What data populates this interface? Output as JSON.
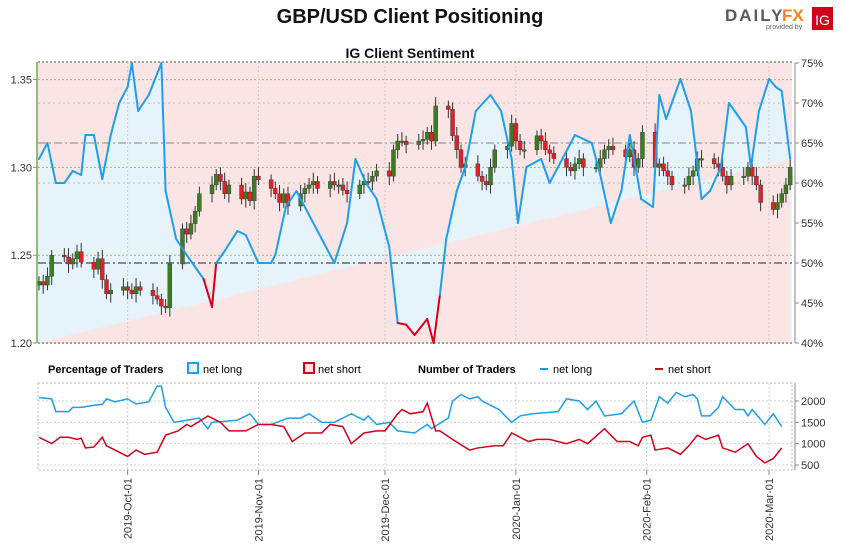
{
  "header": {
    "title": "GBP/USD Client Positioning",
    "logo": {
      "part1": "DAILY",
      "part2": "FX",
      "provided": "provided by",
      "badge": "IG"
    }
  },
  "colors": {
    "long": "#1E9FE6",
    "short": "#D0021B",
    "candle_up": "#3A7D22",
    "candle_down": "#E0202A",
    "long_fill": "#E6F3FB",
    "short_fill": "#FBE4E4",
    "logo_grey": "#555a63",
    "logo_orange": "#F58220"
  },
  "chart_data": [
    {
      "type": "candlestick+line",
      "title": "IG Client Sentiment",
      "x_start": "2019-09-10",
      "x_ticks": [
        "2019-Oct-01",
        "2019-Nov-01",
        "2019-Dec-01",
        "2020-Jan-01",
        "2020-Feb-01",
        "2020-Mar-01"
      ],
      "left_axis": {
        "label": "GBP/USD",
        "ticks": [
          "1.35",
          "1.30",
          "1.25",
          "1.20"
        ],
        "ylim": [
          1.2,
          1.36
        ]
      },
      "right_axis": {
        "ticks": [
          "75%",
          "70%",
          "65%",
          "60%",
          "55%",
          "50%",
          "45%",
          "40%"
        ],
        "ylim": [
          40,
          75
        ]
      },
      "price_closes": [
        1.235,
        1.233,
        1.238,
        1.25,
        1.249,
        1.245,
        1.248,
        1.252,
        1.246,
        1.242,
        1.248,
        1.236,
        1.228,
        1.23,
        1.232,
        1.23,
        1.228,
        1.232,
        1.23,
        1.227,
        1.225,
        1.221,
        1.22,
        1.245,
        1.265,
        1.262,
        1.268,
        1.275,
        1.285,
        1.29,
        1.296,
        1.292,
        1.285,
        1.29,
        1.282,
        1.286,
        1.281,
        1.295,
        1.293,
        1.288,
        1.285,
        1.28,
        1.285,
        1.278,
        1.285,
        1.288,
        1.29,
        1.292,
        1.288,
        1.292,
        1.29,
        1.29,
        1.287,
        1.285,
        1.29,
        1.292,
        1.292,
        1.295,
        1.298,
        1.295,
        1.31,
        1.315,
        1.315,
        1.313,
        1.315,
        1.316,
        1.32,
        1.315,
        1.335,
        1.333,
        1.318,
        1.31,
        1.3,
        1.302,
        1.295,
        1.292,
        1.29,
        1.3,
        1.31,
        1.312,
        1.325,
        1.315,
        1.31,
        1.31,
        1.318,
        1.315,
        1.31,
        1.308,
        1.305,
        1.3,
        1.298,
        1.302,
        1.305,
        1.3,
        1.3,
        1.305,
        1.31,
        1.312,
        1.31,
        1.306,
        1.31,
        1.3,
        1.305,
        1.32,
        1.3,
        1.302,
        1.298,
        1.295,
        1.29,
        1.29,
        1.295,
        1.298,
        1.305,
        1.305,
        1.302,
        1.3,
        1.295,
        1.29,
        1.295,
        1.295,
        1.3,
        1.295,
        1.29,
        1.28,
        1.276,
        1.28,
        1.285,
        1.29,
        1.3
      ],
      "net_long_pct": [
        [
          0,
          63
        ],
        [
          2,
          65
        ],
        [
          4,
          60
        ],
        [
          6,
          60
        ],
        [
          8,
          61.5
        ],
        [
          10,
          61
        ],
        [
          11,
          66
        ],
        [
          13,
          66
        ],
        [
          15,
          60.5
        ],
        [
          17,
          66
        ],
        [
          19,
          70
        ],
        [
          21,
          72
        ],
        [
          22,
          75
        ],
        [
          23.5,
          69
        ],
        [
          26,
          71
        ],
        [
          29,
          75
        ],
        [
          30,
          59
        ],
        [
          32.5,
          53
        ],
        [
          35,
          51
        ],
        [
          39,
          48
        ],
        [
          41,
          44.5
        ],
        [
          42,
          50
        ],
        [
          44,
          51.5
        ],
        [
          47,
          54
        ],
        [
          49,
          53.5
        ],
        [
          52,
          50
        ],
        [
          55,
          50
        ],
        [
          56,
          51
        ],
        [
          58.5,
          57
        ],
        [
          61,
          59
        ],
        [
          63,
          57
        ],
        [
          66,
          54
        ],
        [
          70,
          50
        ],
        [
          73,
          55
        ],
        [
          75,
          63
        ],
        [
          77.5,
          60
        ],
        [
          80,
          58
        ],
        [
          83,
          52
        ],
        [
          85,
          42.5
        ],
        [
          87,
          42.3
        ],
        [
          89,
          41
        ],
        [
          92,
          43
        ],
        [
          93.5,
          40
        ],
        [
          95,
          46
        ],
        [
          96.5,
          53
        ],
        [
          99,
          59
        ],
        [
          101,
          62
        ],
        [
          103.5,
          69
        ],
        [
          107,
          71
        ],
        [
          109.5,
          69
        ],
        [
          112,
          63
        ],
        [
          113.5,
          55
        ],
        [
          115.5,
          62
        ],
        [
          119,
          63
        ],
        [
          121,
          60
        ],
        [
          124,
          63
        ],
        [
          127,
          66
        ],
        [
          131,
          65
        ],
        [
          133,
          61
        ],
        [
          135.5,
          55
        ],
        [
          138,
          59
        ],
        [
          140,
          66
        ],
        [
          142.7,
          58
        ],
        [
          145.5,
          57
        ],
        [
          147,
          71
        ],
        [
          148.6,
          68
        ],
        [
          152,
          73
        ],
        [
          154.5,
          69
        ],
        [
          157,
          58
        ],
        [
          159,
          59
        ],
        [
          161.6,
          62
        ],
        [
          163.5,
          70
        ],
        [
          167.5,
          67
        ],
        [
          168.7,
          62
        ],
        [
          170.6,
          69
        ],
        [
          173,
          73
        ],
        [
          174.6,
          72
        ],
        [
          176,
          71.5
        ],
        [
          178,
          63
        ]
      ]
    },
    {
      "type": "line",
      "legend": {
        "pct_title": "Percentage of Traders",
        "pct_long": "net long",
        "pct_short": "net short",
        "num_title": "Number of Traders",
        "num_long": "net long",
        "num_short": "net short"
      },
      "right_axis": {
        "ticks": [
          "2000",
          "1500",
          "1000",
          "500"
        ],
        "ylim": [
          300,
          2400
        ]
      },
      "net_long_traders": [
        [
          0,
          2080
        ],
        [
          3,
          2050
        ],
        [
          4,
          1750
        ],
        [
          7,
          1750
        ],
        [
          8,
          1850
        ],
        [
          10,
          1850
        ],
        [
          13,
          1900
        ],
        [
          15,
          1920
        ],
        [
          16,
          2050
        ],
        [
          18,
          1980
        ],
        [
          21,
          2050
        ],
        [
          23,
          1930
        ],
        [
          26,
          1980
        ],
        [
          28,
          2350
        ],
        [
          29,
          2350
        ],
        [
          30,
          1850
        ],
        [
          32,
          1500
        ],
        [
          35,
          1550
        ],
        [
          38,
          1600
        ],
        [
          40,
          1350
        ],
        [
          41,
          1500
        ],
        [
          47,
          1550
        ],
        [
          50,
          1700
        ],
        [
          52,
          1450
        ],
        [
          55,
          1450
        ],
        [
          59,
          1600
        ],
        [
          62,
          1600
        ],
        [
          64,
          1700
        ],
        [
          67,
          1500
        ],
        [
          70,
          1500
        ],
        [
          74,
          1700
        ],
        [
          77,
          1550
        ],
        [
          78,
          1650
        ],
        [
          80,
          1450
        ],
        [
          83,
          1500
        ],
        [
          85,
          1300
        ],
        [
          89,
          1250
        ],
        [
          92,
          1450
        ],
        [
          93,
          1350
        ],
        [
          97,
          1600
        ],
        [
          98,
          2000
        ],
        [
          100,
          2150
        ],
        [
          102,
          2050
        ],
        [
          104,
          2100
        ],
        [
          105,
          2000
        ],
        [
          109,
          1800
        ],
        [
          112,
          1500
        ],
        [
          114,
          1650
        ],
        [
          117,
          1700
        ],
        [
          123,
          1750
        ],
        [
          125,
          2050
        ],
        [
          128,
          2000
        ],
        [
          130,
          1800
        ],
        [
          132,
          2000
        ],
        [
          134,
          1650
        ],
        [
          138,
          1700
        ],
        [
          141,
          2000
        ],
        [
          143,
          1500
        ],
        [
          145,
          1550
        ],
        [
          147,
          2100
        ],
        [
          149,
          1950
        ],
        [
          151,
          2200
        ],
        [
          153,
          2100
        ],
        [
          155,
          2150
        ],
        [
          156,
          2050
        ],
        [
          157,
          1650
        ],
        [
          159,
          1650
        ],
        [
          161,
          1850
        ],
        [
          162,
          2100
        ],
        [
          165,
          1800
        ],
        [
          167,
          1800
        ],
        [
          168,
          1650
        ],
        [
          169,
          1800
        ],
        [
          172,
          1450
        ],
        [
          174,
          1700
        ],
        [
          176,
          1400
        ]
      ],
      "net_short_traders": [
        [
          0,
          1150
        ],
        [
          3,
          1000
        ],
        [
          5,
          1150
        ],
        [
          7,
          1150
        ],
        [
          9,
          1100
        ],
        [
          10,
          1130
        ],
        [
          11,
          900
        ],
        [
          13,
          920
        ],
        [
          15,
          1150
        ],
        [
          16,
          950
        ],
        [
          18,
          850
        ],
        [
          21,
          700
        ],
        [
          23,
          850
        ],
        [
          25,
          750
        ],
        [
          28,
          800
        ],
        [
          30,
          1200
        ],
        [
          33,
          1300
        ],
        [
          35,
          1450
        ],
        [
          36,
          1400
        ],
        [
          40,
          1650
        ],
        [
          43,
          1500
        ],
        [
          45,
          1300
        ],
        [
          49,
          1300
        ],
        [
          52,
          1450
        ],
        [
          55,
          1450
        ],
        [
          58,
          1400
        ],
        [
          60,
          1050
        ],
        [
          63,
          1250
        ],
        [
          67,
          1250
        ],
        [
          69,
          1450
        ],
        [
          72,
          1400
        ],
        [
          74,
          1000
        ],
        [
          77,
          1250
        ],
        [
          80,
          1300
        ],
        [
          82,
          1300
        ],
        [
          85,
          1700
        ],
        [
          86,
          1800
        ],
        [
          88,
          1700
        ],
        [
          91,
          1750
        ],
        [
          92,
          1950
        ],
        [
          94,
          1300
        ],
        [
          95,
          1300
        ],
        [
          98,
          1100
        ],
        [
          102,
          850
        ],
        [
          104,
          900
        ],
        [
          108,
          950
        ],
        [
          110,
          950
        ],
        [
          112,
          1250
        ],
        [
          116,
          1050
        ],
        [
          118,
          1100
        ],
        [
          121,
          1100
        ],
        [
          125,
          1000
        ],
        [
          128,
          1100
        ],
        [
          130,
          1000
        ],
        [
          134,
          1350
        ],
        [
          137,
          1050
        ],
        [
          140,
          1050
        ],
        [
          142,
          950
        ],
        [
          143,
          1150
        ],
        [
          145,
          1200
        ],
        [
          146,
          850
        ],
        [
          149,
          900
        ],
        [
          152,
          750
        ],
        [
          154,
          950
        ],
        [
          156,
          1200
        ],
        [
          158,
          1100
        ],
        [
          161,
          1200
        ],
        [
          162,
          900
        ],
        [
          165,
          800
        ],
        [
          168,
          1000
        ],
        [
          170,
          700
        ],
        [
          172,
          550
        ],
        [
          174,
          650
        ],
        [
          176,
          900
        ]
      ]
    }
  ]
}
